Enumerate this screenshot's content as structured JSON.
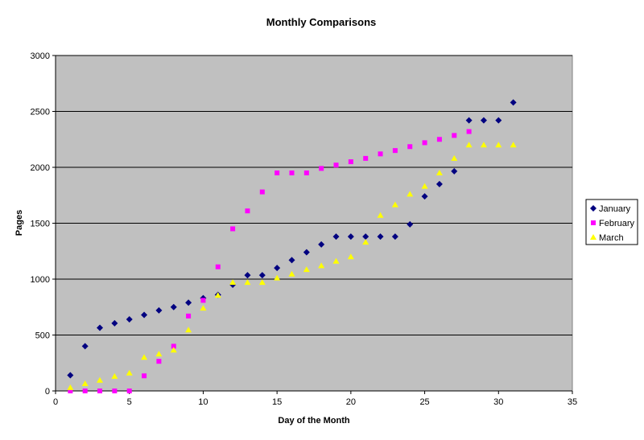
{
  "chart_data": {
    "type": "scatter",
    "title": "Monthly Comparisons",
    "xlabel": "Day of the Month",
    "ylabel": "Pages",
    "xlim": [
      0,
      35
    ],
    "ylim": [
      0,
      3000
    ],
    "x_ticks": [
      0,
      5,
      10,
      15,
      20,
      25,
      30,
      35
    ],
    "y_ticks": [
      0,
      500,
      1000,
      1500,
      2000,
      2500,
      3000
    ],
    "grid": "horizontal",
    "legend_position": "right",
    "plot_background": "#c0c0c0",
    "series": [
      {
        "name": "January",
        "marker": "diamond",
        "color": "#000080",
        "points": [
          [
            1,
            140
          ],
          [
            2,
            400
          ],
          [
            3,
            565
          ],
          [
            4,
            605
          ],
          [
            5,
            640
          ],
          [
            6,
            680
          ],
          [
            7,
            720
          ],
          [
            8,
            750
          ],
          [
            9,
            790
          ],
          [
            10,
            830
          ],
          [
            11,
            860
          ],
          [
            12,
            950
          ],
          [
            13,
            1035
          ],
          [
            14,
            1035
          ],
          [
            15,
            1100
          ],
          [
            16,
            1170
          ],
          [
            17,
            1240
          ],
          [
            18,
            1310
          ],
          [
            19,
            1380
          ],
          [
            20,
            1380
          ],
          [
            21,
            1380
          ],
          [
            22,
            1380
          ],
          [
            23,
            1380
          ],
          [
            24,
            1490
          ],
          [
            25,
            1740
          ],
          [
            26,
            1850
          ],
          [
            27,
            1965
          ],
          [
            28,
            2420
          ],
          [
            29,
            2420
          ],
          [
            30,
            2420
          ],
          [
            31,
            2580
          ]
        ]
      },
      {
        "name": "February",
        "marker": "square",
        "color": "#ff00ff",
        "points": [
          [
            1,
            0
          ],
          [
            2,
            0
          ],
          [
            3,
            0
          ],
          [
            4,
            0
          ],
          [
            5,
            0
          ],
          [
            6,
            135
          ],
          [
            7,
            265
          ],
          [
            8,
            400
          ],
          [
            9,
            670
          ],
          [
            10,
            810
          ],
          [
            11,
            1110
          ],
          [
            12,
            1450
          ],
          [
            13,
            1610
          ],
          [
            14,
            1780
          ],
          [
            15,
            1950
          ],
          [
            16,
            1950
          ],
          [
            17,
            1950
          ],
          [
            18,
            1990
          ],
          [
            19,
            2020
          ],
          [
            20,
            2050
          ],
          [
            21,
            2080
          ],
          [
            22,
            2120
          ],
          [
            23,
            2150
          ],
          [
            24,
            2185
          ],
          [
            25,
            2220
          ],
          [
            26,
            2250
          ],
          [
            27,
            2285
          ],
          [
            28,
            2320
          ]
        ]
      },
      {
        "name": "March",
        "marker": "triangle",
        "color": "#ffff00",
        "points": [
          [
            1,
            30
          ],
          [
            2,
            65
          ],
          [
            3,
            95
          ],
          [
            4,
            130
          ],
          [
            5,
            160
          ],
          [
            6,
            300
          ],
          [
            7,
            330
          ],
          [
            8,
            365
          ],
          [
            9,
            545
          ],
          [
            10,
            740
          ],
          [
            11,
            855
          ],
          [
            12,
            970
          ],
          [
            13,
            970
          ],
          [
            14,
            970
          ],
          [
            15,
            1010
          ],
          [
            16,
            1045
          ],
          [
            17,
            1085
          ],
          [
            18,
            1120
          ],
          [
            19,
            1160
          ],
          [
            20,
            1200
          ],
          [
            21,
            1330
          ],
          [
            22,
            1570
          ],
          [
            23,
            1665
          ],
          [
            24,
            1760
          ],
          [
            25,
            1830
          ],
          [
            26,
            1950
          ],
          [
            27,
            2080
          ],
          [
            28,
            2200
          ],
          [
            29,
            2200
          ],
          [
            30,
            2200
          ],
          [
            31,
            2200
          ]
        ]
      }
    ]
  }
}
